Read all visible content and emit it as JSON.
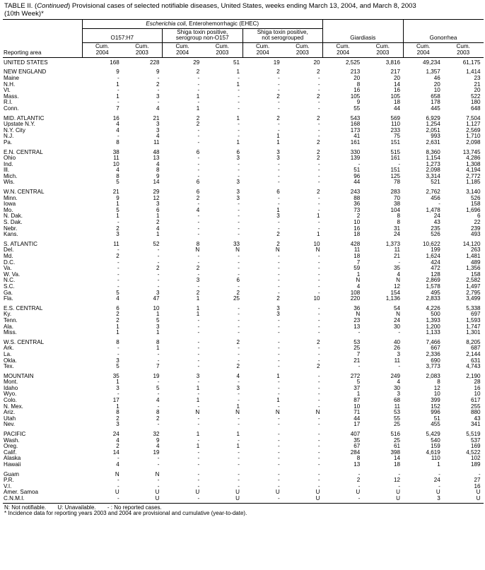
{
  "title": {
    "lead": "TABLE II. (",
    "italic": "Continued",
    "rest": ") Provisional cases of selected notifiable diseases, United States, weeks ending March 13, 2004, and March 8, 2003",
    "line2": "(10th Week)*"
  },
  "header": {
    "ehec_italic": "Escherichia coli,",
    "ehec_rest": " Enterohemorrhagic (EHEC)",
    "groups": [
      [
        "O157:H7"
      ],
      [
        "Shiga toxin positive,",
        "serogroup non-O157"
      ],
      [
        "Shiga toxin positive,",
        "not serogrouped"
      ],
      [
        "Giardiasis"
      ],
      [
        "Gonorrhea"
      ]
    ],
    "reporting_area": "Reporting area",
    "years": [
      "Cum.",
      "2004",
      "Cum.",
      "2003"
    ]
  },
  "rows": [
    {
      "area": "UNITED STATES",
      "v": [
        "168",
        "228",
        "29",
        "51",
        "19",
        "20",
        "2,525",
        "3,816",
        "49,234",
        "61,175"
      ],
      "first": true
    },
    {
      "area": "NEW ENGLAND",
      "v": [
        "9",
        "9",
        "2",
        "1",
        "2",
        "2",
        "213",
        "217",
        "1,357",
        "1,414"
      ],
      "gap": true
    },
    {
      "area": "Maine",
      "v": [
        "-",
        "-",
        "-",
        "-",
        "-",
        "-",
        "20",
        "20",
        "46",
        "23"
      ]
    },
    {
      "area": "N.H.",
      "v": [
        "1",
        "2",
        "-",
        "1",
        "-",
        "-",
        "8",
        "14",
        "20",
        "21"
      ]
    },
    {
      "area": "Vt.",
      "v": [
        "-",
        "-",
        "-",
        "-",
        "-",
        "-",
        "16",
        "16",
        "10",
        "20"
      ]
    },
    {
      "area": "Mass.",
      "v": [
        "1",
        "3",
        "1",
        "-",
        "2",
        "2",
        "105",
        "105",
        "658",
        "522"
      ]
    },
    {
      "area": "R.I.",
      "v": [
        "-",
        "-",
        "-",
        "-",
        "-",
        "-",
        "9",
        "18",
        "178",
        "180"
      ]
    },
    {
      "area": "Conn.",
      "v": [
        "7",
        "4",
        "1",
        "-",
        "-",
        "-",
        "55",
        "44",
        "445",
        "648"
      ]
    },
    {
      "area": "MID. ATLANTIC",
      "v": [
        "16",
        "21",
        "2",
        "1",
        "2",
        "2",
        "543",
        "569",
        "6,929",
        "7,504"
      ],
      "gap": true
    },
    {
      "area": "Upstate N.Y.",
      "v": [
        "4",
        "3",
        "2",
        "-",
        "-",
        "-",
        "168",
        "110",
        "1,254",
        "1,127"
      ]
    },
    {
      "area": "N.Y. City",
      "v": [
        "4",
        "3",
        "-",
        "-",
        "-",
        "-",
        "173",
        "233",
        "2,051",
        "2,569"
      ]
    },
    {
      "area": "N.J.",
      "v": [
        "-",
        "4",
        "-",
        "-",
        "1",
        "-",
        "41",
        "75",
        "993",
        "1,710"
      ]
    },
    {
      "area": "Pa.",
      "v": [
        "8",
        "11",
        "-",
        "1",
        "1",
        "2",
        "161",
        "151",
        "2,631",
        "2,098"
      ]
    },
    {
      "area": "E.N. CENTRAL",
      "v": [
        "38",
        "48",
        "6",
        "6",
        "3",
        "2",
        "330",
        "515",
        "8,360",
        "13,745"
      ],
      "gap": true
    },
    {
      "area": "Ohio",
      "v": [
        "11",
        "13",
        "-",
        "3",
        "3",
        "2",
        "139",
        "161",
        "1,154",
        "4,286"
      ]
    },
    {
      "area": "Ind.",
      "v": [
        "10",
        "4",
        "-",
        "-",
        "-",
        "-",
        "-",
        "-",
        "1,273",
        "1,308"
      ]
    },
    {
      "area": "Ill.",
      "v": [
        "4",
        "8",
        "-",
        "-",
        "-",
        "-",
        "51",
        "151",
        "2,098",
        "4,194"
      ]
    },
    {
      "area": "Mich.",
      "v": [
        "8",
        "9",
        "-",
        "-",
        "-",
        "-",
        "96",
        "125",
        "3,314",
        "2,772"
      ]
    },
    {
      "area": "Wis.",
      "v": [
        "5",
        "14",
        "6",
        "3",
        "-",
        "-",
        "44",
        "78",
        "521",
        "1,185"
      ]
    },
    {
      "area": "W.N. CENTRAL",
      "v": [
        "21",
        "29",
        "6",
        "3",
        "6",
        "2",
        "243",
        "283",
        "2,762",
        "3,140"
      ],
      "gap": true
    },
    {
      "area": "Minn.",
      "v": [
        "9",
        "12",
        "2",
        "3",
        "-",
        "-",
        "88",
        "70",
        "456",
        "526"
      ]
    },
    {
      "area": "Iowa",
      "v": [
        "1",
        "3",
        "-",
        "-",
        "-",
        "-",
        "36",
        "38",
        "-",
        "158"
      ]
    },
    {
      "area": "Mo.",
      "v": [
        "5",
        "6",
        "4",
        "-",
        "1",
        "-",
        "73",
        "104",
        "1,478",
        "1,696"
      ]
    },
    {
      "area": "N. Dak.",
      "v": [
        "1",
        "1",
        "-",
        "-",
        "3",
        "1",
        "2",
        "8",
        "24",
        "6"
      ]
    },
    {
      "area": "S. Dak.",
      "v": [
        "-",
        "2",
        "-",
        "-",
        "-",
        "-",
        "10",
        "8",
        "43",
        "22"
      ]
    },
    {
      "area": "Nebr.",
      "v": [
        "2",
        "4",
        "-",
        "-",
        "-",
        "-",
        "16",
        "31",
        "235",
        "239"
      ]
    },
    {
      "area": "Kans.",
      "v": [
        "3",
        "1",
        "-",
        "-",
        "2",
        "1",
        "18",
        "24",
        "526",
        "493"
      ]
    },
    {
      "area": "S. ATLANTIC",
      "v": [
        "11",
        "52",
        "8",
        "33",
        "2",
        "10",
        "428",
        "1,373",
        "10,622",
        "14,120"
      ],
      "gap": true
    },
    {
      "area": "Del.",
      "v": [
        "-",
        "-",
        "N",
        "N",
        "N",
        "N",
        "11",
        "11",
        "199",
        "263"
      ]
    },
    {
      "area": "Md.",
      "v": [
        "2",
        "-",
        "-",
        "-",
        "-",
        "-",
        "18",
        "21",
        "1,624",
        "1,481"
      ]
    },
    {
      "area": "D.C.",
      "v": [
        "-",
        "-",
        "-",
        "-",
        "-",
        "-",
        "7",
        "-",
        "424",
        "489"
      ]
    },
    {
      "area": "Va.",
      "v": [
        "-",
        "2",
        "2",
        "-",
        "-",
        "-",
        "59",
        "35",
        "472",
        "1,356"
      ]
    },
    {
      "area": "W. Va.",
      "v": [
        "-",
        "-",
        "-",
        "-",
        "-",
        "-",
        "1",
        "4",
        "128",
        "158"
      ]
    },
    {
      "area": "N.C.",
      "v": [
        "-",
        "-",
        "3",
        "6",
        "-",
        "-",
        "N",
        "N",
        "2,869",
        "2,582"
      ]
    },
    {
      "area": "S.C.",
      "v": [
        "-",
        "-",
        "-",
        "-",
        "-",
        "-",
        "4",
        "12",
        "1,578",
        "1,497"
      ]
    },
    {
      "area": "Ga.",
      "v": [
        "5",
        "3",
        "2",
        "2",
        "-",
        "-",
        "108",
        "154",
        "495",
        "2,795"
      ]
    },
    {
      "area": "Fla.",
      "v": [
        "4",
        "47",
        "1",
        "25",
        "2",
        "10",
        "220",
        "1,136",
        "2,833",
        "3,499"
      ]
    },
    {
      "area": "E.S. CENTRAL",
      "v": [
        "6",
        "10",
        "1",
        "-",
        "3",
        "-",
        "36",
        "54",
        "4,226",
        "5,338"
      ],
      "gap": true
    },
    {
      "area": "Ky.",
      "v": [
        "2",
        "1",
        "1",
        "-",
        "3",
        "-",
        "N",
        "N",
        "500",
        "697"
      ]
    },
    {
      "area": "Tenn.",
      "v": [
        "2",
        "5",
        "-",
        "-",
        "-",
        "-",
        "23",
        "24",
        "1,393",
        "1,593"
      ]
    },
    {
      "area": "Ala.",
      "v": [
        "1",
        "3",
        "-",
        "-",
        "-",
        "-",
        "13",
        "30",
        "1,200",
        "1,747"
      ]
    },
    {
      "area": "Miss.",
      "v": [
        "1",
        "1",
        "-",
        "-",
        "-",
        "-",
        "-",
        "-",
        "1,133",
        "1,301"
      ]
    },
    {
      "area": "W.S. CENTRAL",
      "v": [
        "8",
        "8",
        "-",
        "2",
        "-",
        "2",
        "53",
        "40",
        "7,466",
        "8,205"
      ],
      "gap": true
    },
    {
      "area": "Ark.",
      "v": [
        "-",
        "1",
        "-",
        "-",
        "-",
        "-",
        "25",
        "26",
        "667",
        "687"
      ]
    },
    {
      "area": "La.",
      "v": [
        "-",
        "-",
        "-",
        "-",
        "-",
        "-",
        "7",
        "3",
        "2,336",
        "2,144"
      ]
    },
    {
      "area": "Okla.",
      "v": [
        "3",
        "-",
        "-",
        "-",
        "-",
        "-",
        "21",
        "11",
        "690",
        "631"
      ]
    },
    {
      "area": "Tex.",
      "v": [
        "5",
        "7",
        "-",
        "2",
        "-",
        "2",
        "-",
        "-",
        "3,773",
        "4,743"
      ]
    },
    {
      "area": "MOUNTAIN",
      "v": [
        "35",
        "19",
        "3",
        "4",
        "1",
        "-",
        "272",
        "249",
        "2,083",
        "2,190"
      ],
      "gap": true
    },
    {
      "area": "Mont.",
      "v": [
        "1",
        "-",
        "-",
        "-",
        "-",
        "-",
        "5",
        "4",
        "8",
        "28"
      ]
    },
    {
      "area": "Idaho",
      "v": [
        "3",
        "5",
        "1",
        "3",
        "-",
        "-",
        "37",
        "30",
        "12",
        "16"
      ]
    },
    {
      "area": "Wyo.",
      "v": [
        "-",
        "-",
        "-",
        "-",
        "-",
        "-",
        "1",
        "3",
        "10",
        "10"
      ]
    },
    {
      "area": "Colo.",
      "v": [
        "17",
        "4",
        "1",
        "-",
        "1",
        "-",
        "87",
        "68",
        "399",
        "617"
      ]
    },
    {
      "area": "N. Mex.",
      "v": [
        "1",
        "-",
        "-",
        "1",
        "-",
        "-",
        "10",
        "11",
        "152",
        "255"
      ]
    },
    {
      "area": "Ariz.",
      "v": [
        "8",
        "8",
        "N",
        "N",
        "N",
        "N",
        "71",
        "53",
        "996",
        "880"
      ]
    },
    {
      "area": "Utah",
      "v": [
        "2",
        "2",
        "-",
        "-",
        "-",
        "-",
        "44",
        "55",
        "51",
        "43"
      ]
    },
    {
      "area": "Nev.",
      "v": [
        "3",
        "-",
        "-",
        "-",
        "-",
        "-",
        "17",
        "25",
        "455",
        "341"
      ]
    },
    {
      "area": "PACIFIC",
      "v": [
        "24",
        "32",
        "1",
        "1",
        "-",
        "-",
        "407",
        "516",
        "5,429",
        "5,519"
      ],
      "gap": true
    },
    {
      "area": "Wash.",
      "v": [
        "4",
        "9",
        "-",
        "-",
        "-",
        "-",
        "35",
        "25",
        "540",
        "537"
      ]
    },
    {
      "area": "Oreg.",
      "v": [
        "2",
        "4",
        "1",
        "1",
        "-",
        "-",
        "67",
        "61",
        "159",
        "169"
      ]
    },
    {
      "area": "Calif.",
      "v": [
        "14",
        "19",
        "-",
        "-",
        "-",
        "-",
        "284",
        "398",
        "4,619",
        "4,522"
      ]
    },
    {
      "area": "Alaska",
      "v": [
        "-",
        "-",
        "-",
        "-",
        "-",
        "-",
        "8",
        "14",
        "110",
        "102"
      ]
    },
    {
      "area": "Hawaii",
      "v": [
        "4",
        "-",
        "-",
        "-",
        "-",
        "-",
        "13",
        "18",
        "1",
        "189"
      ]
    },
    {
      "area": "Guam",
      "v": [
        "N",
        "N",
        "-",
        "-",
        "-",
        "-",
        "-",
        "-",
        "-",
        "-"
      ],
      "gap": true
    },
    {
      "area": "P.R.",
      "v": [
        "-",
        "-",
        "-",
        "-",
        "-",
        "-",
        "2",
        "12",
        "24",
        "27"
      ]
    },
    {
      "area": "V.I.",
      "v": [
        "-",
        "-",
        "-",
        "-",
        "-",
        "-",
        "-",
        "-",
        "-",
        "16"
      ]
    },
    {
      "area": "Amer. Samoa",
      "v": [
        "U",
        "U",
        "U",
        "U",
        "U",
        "U",
        "U",
        "U",
        "U",
        "U"
      ]
    },
    {
      "area": "C.N.M.I.",
      "v": [
        "-",
        "U",
        "-",
        "U",
        "-",
        "U",
        "-",
        "U",
        "3",
        "U"
      ],
      "last": true
    }
  ],
  "footnotes": {
    "legend": [
      "N: Not notifiable.",
      "U: Unavailable.",
      "- : No reported cases."
    ],
    "note": "* Incidence data for reporting years 2003 and 2004 are provisional and cumulative (year-to-date)."
  }
}
